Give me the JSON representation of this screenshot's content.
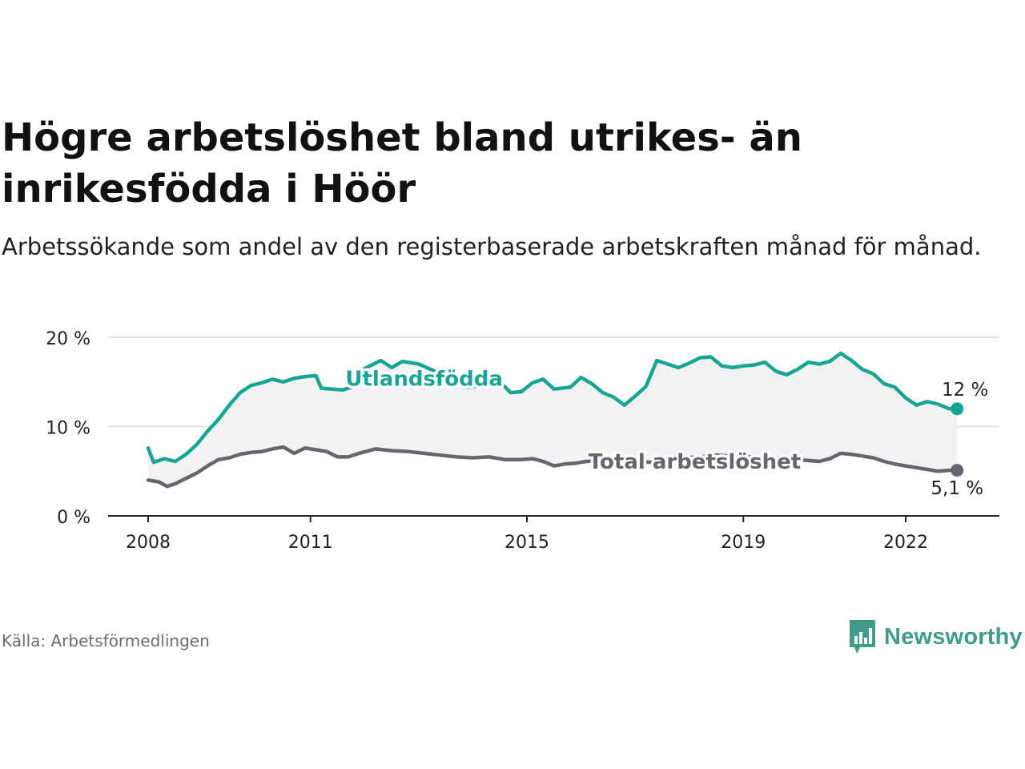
{
  "header": {
    "title": "Högre arbetslöshet bland utrikes- än inrikesfödda i Höör",
    "subtitle": "Arbetssökande som andel av den registerbaserade arbetskraften månad för månad."
  },
  "footer": {
    "source": "Källa: Arbetsförmedlingen",
    "brand": "Newsworthy"
  },
  "colors": {
    "foreign": "#19a596",
    "total": "#66666e",
    "band": "#f2f2f2",
    "grid": "#d9d9d9",
    "axis": "#222222"
  },
  "chart_data": {
    "type": "line",
    "title": "Högre arbetslöshet bland utrikes- än inrikesfödda i Höör",
    "xlabel": "",
    "ylabel": "",
    "xlim": [
      2008,
      2023.1
    ],
    "ylim": [
      0,
      20
    ],
    "yticks": [
      0,
      10,
      20
    ],
    "ytick_labels": [
      "0 %",
      "10 %",
      "20 %"
    ],
    "xticks": [
      2008,
      2011,
      2015,
      2019,
      2022
    ],
    "xtick_labels": [
      "2008",
      "2011",
      "2015",
      "2019",
      "2022"
    ],
    "grid": true,
    "series": [
      {
        "name": "Utlandsfödda",
        "color": "#19a596",
        "end_label": "12 %",
        "points": [
          [
            2008.0,
            7.6
          ],
          [
            2008.1,
            6.0
          ],
          [
            2008.3,
            6.4
          ],
          [
            2008.5,
            6.1
          ],
          [
            2008.7,
            6.9
          ],
          [
            2008.9,
            8.0
          ],
          [
            2009.1,
            9.5
          ],
          [
            2009.3,
            10.8
          ],
          [
            2009.5,
            12.4
          ],
          [
            2009.7,
            13.8
          ],
          [
            2009.9,
            14.6
          ],
          [
            2010.1,
            14.9
          ],
          [
            2010.3,
            15.3
          ],
          [
            2010.5,
            15.0
          ],
          [
            2010.7,
            15.4
          ],
          [
            2010.9,
            15.6
          ],
          [
            2011.1,
            15.7
          ],
          [
            2011.2,
            14.3
          ],
          [
            2011.4,
            14.2
          ],
          [
            2011.6,
            14.1
          ],
          [
            2011.8,
            14.5
          ],
          [
            2012.0,
            16.5
          ],
          [
            2012.3,
            17.4
          ],
          [
            2012.5,
            16.6
          ],
          [
            2012.7,
            17.3
          ],
          [
            2013.0,
            17.0
          ],
          [
            2013.3,
            16.2
          ],
          [
            2013.6,
            15.2
          ],
          [
            2013.9,
            14.4
          ],
          [
            2014.2,
            14.6
          ],
          [
            2014.5,
            15.0
          ],
          [
            2014.7,
            13.8
          ],
          [
            2014.9,
            13.9
          ],
          [
            2015.1,
            14.9
          ],
          [
            2015.3,
            15.3
          ],
          [
            2015.5,
            14.2
          ],
          [
            2015.8,
            14.4
          ],
          [
            2016.0,
            15.5
          ],
          [
            2016.2,
            14.8
          ],
          [
            2016.4,
            13.8
          ],
          [
            2016.6,
            13.3
          ],
          [
            2016.8,
            12.4
          ],
          [
            2017.0,
            13.4
          ],
          [
            2017.2,
            14.5
          ],
          [
            2017.4,
            17.4
          ],
          [
            2017.6,
            17.0
          ],
          [
            2017.8,
            16.6
          ],
          [
            2018.0,
            17.1
          ],
          [
            2018.2,
            17.7
          ],
          [
            2018.4,
            17.8
          ],
          [
            2018.6,
            16.8
          ],
          [
            2018.8,
            16.6
          ],
          [
            2019.0,
            16.8
          ],
          [
            2019.2,
            16.9
          ],
          [
            2019.4,
            17.2
          ],
          [
            2019.6,
            16.2
          ],
          [
            2019.8,
            15.8
          ],
          [
            2020.0,
            16.4
          ],
          [
            2020.2,
            17.2
          ],
          [
            2020.4,
            17.0
          ],
          [
            2020.6,
            17.3
          ],
          [
            2020.8,
            18.2
          ],
          [
            2021.0,
            17.4
          ],
          [
            2021.2,
            16.4
          ],
          [
            2021.4,
            15.9
          ],
          [
            2021.6,
            14.8
          ],
          [
            2021.8,
            14.4
          ],
          [
            2022.0,
            13.2
          ],
          [
            2022.2,
            12.4
          ],
          [
            2022.4,
            12.8
          ],
          [
            2022.6,
            12.5
          ],
          [
            2022.8,
            12.0
          ],
          [
            2022.95,
            12.0
          ]
        ]
      },
      {
        "name": "Total arbetslöshet",
        "color": "#66666e",
        "end_label": "5,1 %",
        "points": [
          [
            2008.0,
            4.0
          ],
          [
            2008.2,
            3.8
          ],
          [
            2008.35,
            3.3
          ],
          [
            2008.5,
            3.6
          ],
          [
            2008.7,
            4.2
          ],
          [
            2008.9,
            4.8
          ],
          [
            2009.1,
            5.6
          ],
          [
            2009.3,
            6.3
          ],
          [
            2009.5,
            6.5
          ],
          [
            2009.7,
            6.9
          ],
          [
            2009.9,
            7.1
          ],
          [
            2010.1,
            7.2
          ],
          [
            2010.3,
            7.5
          ],
          [
            2010.5,
            7.7
          ],
          [
            2010.7,
            7.0
          ],
          [
            2010.9,
            7.6
          ],
          [
            2011.1,
            7.4
          ],
          [
            2011.3,
            7.2
          ],
          [
            2011.5,
            6.6
          ],
          [
            2011.7,
            6.6
          ],
          [
            2011.9,
            7.0
          ],
          [
            2012.2,
            7.5
          ],
          [
            2012.5,
            7.3
          ],
          [
            2012.8,
            7.2
          ],
          [
            2013.1,
            7.0
          ],
          [
            2013.4,
            6.8
          ],
          [
            2013.7,
            6.6
          ],
          [
            2014.0,
            6.5
          ],
          [
            2014.3,
            6.6
          ],
          [
            2014.6,
            6.3
          ],
          [
            2014.9,
            6.3
          ],
          [
            2015.1,
            6.4
          ],
          [
            2015.3,
            6.1
          ],
          [
            2015.5,
            5.6
          ],
          [
            2015.7,
            5.8
          ],
          [
            2015.9,
            5.9
          ],
          [
            2016.1,
            6.1
          ],
          [
            2016.4,
            6.2
          ],
          [
            2016.7,
            6.0
          ],
          [
            2017.0,
            6.1
          ],
          [
            2017.3,
            6.0
          ],
          [
            2017.6,
            6.3
          ],
          [
            2017.9,
            6.5
          ],
          [
            2018.2,
            6.6
          ],
          [
            2018.5,
            6.8
          ],
          [
            2018.8,
            6.7
          ],
          [
            2019.1,
            6.6
          ],
          [
            2019.4,
            6.5
          ],
          [
            2019.7,
            6.4
          ],
          [
            2020.0,
            6.3
          ],
          [
            2020.2,
            6.2
          ],
          [
            2020.4,
            6.1
          ],
          [
            2020.6,
            6.4
          ],
          [
            2020.8,
            7.0
          ],
          [
            2021.0,
            6.9
          ],
          [
            2021.2,
            6.7
          ],
          [
            2021.4,
            6.5
          ],
          [
            2021.6,
            6.1
          ],
          [
            2021.8,
            5.8
          ],
          [
            2022.0,
            5.6
          ],
          [
            2022.2,
            5.4
          ],
          [
            2022.4,
            5.2
          ],
          [
            2022.6,
            5.0
          ],
          [
            2022.8,
            5.1
          ],
          [
            2022.95,
            5.1
          ]
        ]
      }
    ],
    "annotations": [
      {
        "text": "Utlandsfödda",
        "series": "Utlandsfödda",
        "x": 2013.1,
        "y": 15.4
      },
      {
        "text": "Total arbetslöshet",
        "series": "Total arbetslöshet",
        "x": 2018.1,
        "y": 6.1
      }
    ]
  }
}
